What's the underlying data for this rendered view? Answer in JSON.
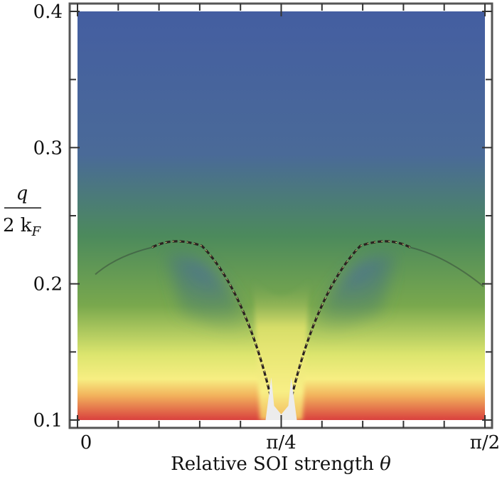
{
  "chart_data": {
    "type": "heatmap",
    "title": "",
    "xlabel": "Relative SOI strength θ",
    "ylabel": "q/2k_F",
    "ylabel_numerator": "q",
    "ylabel_denominator_main": "2 k",
    "ylabel_denominator_sub": "F",
    "xlabel_main": "Relative SOI strength ",
    "xlabel_symbol": "θ",
    "x_range_rad": [
      0,
      1.5708
    ],
    "ylim": [
      0.1,
      0.4
    ],
    "x_ticks": [
      {
        "label": "0",
        "value": 0
      },
      {
        "label": "π/4",
        "value": 0.7854
      },
      {
        "label": "π/2",
        "value": 1.5708
      }
    ],
    "x_minor_count": 10,
    "y_ticks": [
      {
        "label": "0.1",
        "value": 0.1
      },
      {
        "label": "0.2",
        "value": 0.2
      },
      {
        "label": "0.3",
        "value": 0.3
      },
      {
        "label": "0.4",
        "value": 0.4
      }
    ],
    "y_minor_step": 0.05,
    "features": {
      "arch_peak_q": 0.232,
      "arch_peak_theta_left": 0.37,
      "arch_peak_theta_right": 1.2,
      "cusp_theta": 0.7854,
      "cusp_q": 0.1
    },
    "colormap": [
      "#d8443f",
      "#f2a65a",
      "#f4ec7c",
      "#6da050",
      "#4c8a59",
      "#435fa0"
    ]
  }
}
